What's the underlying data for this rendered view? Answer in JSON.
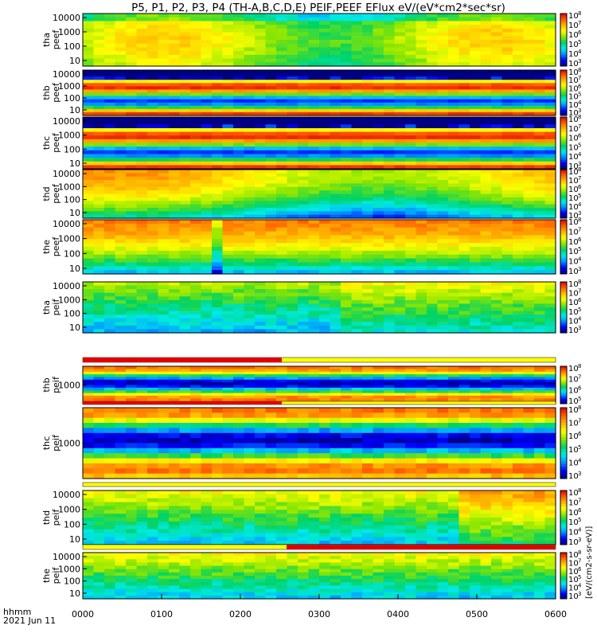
{
  "chart_data": {
    "type": "heatmap",
    "title": "P5, P1, P2, P3, P4 (TH-A,B,C,D,E) PEIF,PEEF EFlux eV/(eV*cm2*sec*sr)",
    "x_axis": {
      "corner_label": "hhmm",
      "date_label": "2021 Jun 11",
      "ticks": [
        "0000",
        "0100",
        "0200",
        "0300",
        "0400",
        "0500",
        "0600"
      ]
    },
    "colorbar": {
      "label": "[eV/(cm2-s-sr-eV)]",
      "ticks": [
        "10",
        "10",
        "10",
        "10",
        "10",
        "10"
      ],
      "exponents": [
        "3",
        "4",
        "5",
        "6",
        "7",
        "8"
      ],
      "ticks_narrow": [
        "10",
        "10",
        "10",
        "10"
      ],
      "exponents_narrow": [
        "5",
        "6",
        "7",
        "8"
      ]
    },
    "panels": [
      {
        "name": "tha peef",
        "l1": "tha",
        "l2": "peef",
        "yticks": [
          "10000",
          "1000",
          "100",
          "10"
        ]
      },
      {
        "name": "thb peef",
        "l1": "thb",
        "l2": "peef",
        "yticks": [
          "10000",
          "1000",
          "100",
          "10"
        ]
      },
      {
        "name": "thc peef",
        "l1": "thc",
        "l2": "peef",
        "yticks": [
          "10000",
          "1000",
          "100",
          "10"
        ]
      },
      {
        "name": "thd peef",
        "l1": "thd",
        "l2": "peef",
        "yticks": [
          "10000",
          "1000",
          "100",
          "10"
        ]
      },
      {
        "name": "the peef",
        "l1": "the",
        "l2": "peef",
        "yticks": [
          "10000",
          "1000",
          "100",
          "10"
        ]
      },
      {
        "name": "tha peif",
        "l1": "tha",
        "l2": "peif",
        "yticks": [
          "10000",
          "1000",
          "100",
          "10"
        ]
      },
      {
        "name": "thb peif",
        "l1": "thb",
        "l2": "peif",
        "yticks": [
          "1000"
        ]
      },
      {
        "name": "thc peif",
        "l1": "thc",
        "l2": "peif",
        "yticks": [
          "1000"
        ]
      },
      {
        "name": "thd peif",
        "l1": "thd",
        "l2": "peif",
        "yticks": [
          "10000",
          "1000",
          "100",
          "10"
        ]
      },
      {
        "name": "the peif",
        "l1": "the",
        "l2": "peif",
        "yticks": [
          "10000",
          "1000",
          "100",
          "10"
        ]
      }
    ]
  }
}
